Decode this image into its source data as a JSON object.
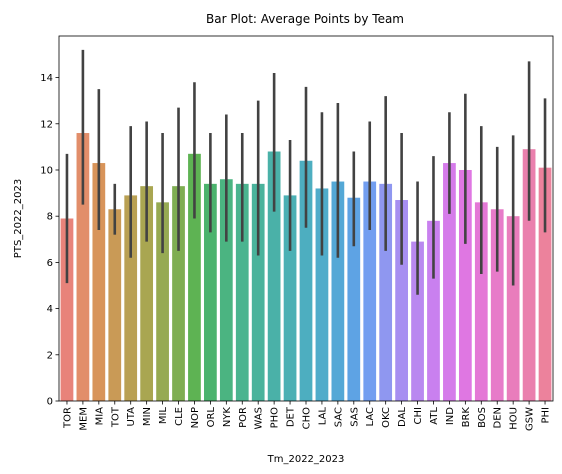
{
  "chart_data": {
    "type": "bar",
    "title": "Bar Plot: Average Points by Team",
    "xlabel": "Tm_2022_2023",
    "ylabel": "PTS_2022_2023",
    "ylim": [
      0,
      15.8
    ],
    "yticks": [
      0,
      2,
      4,
      6,
      8,
      10,
      12,
      14
    ],
    "grid": false,
    "error_bars": true,
    "categories": [
      "TOR",
      "MEM",
      "MIA",
      "TOT",
      "UTA",
      "MIN",
      "MIL",
      "CLE",
      "NOP",
      "ORL",
      "NYK",
      "POR",
      "WAS",
      "PHO",
      "DET",
      "CHO",
      "LAL",
      "SAC",
      "SAS",
      "LAC",
      "OKC",
      "DAL",
      "CHI",
      "ATL",
      "IND",
      "BRK",
      "BOS",
      "DEN",
      "HOU",
      "GSW",
      "PHI"
    ],
    "values": [
      7.9,
      11.6,
      10.3,
      8.3,
      8.9,
      9.3,
      8.6,
      9.3,
      10.7,
      9.4,
      9.6,
      9.4,
      9.4,
      10.8,
      8.9,
      10.4,
      9.2,
      9.5,
      8.8,
      9.5,
      9.4,
      8.7,
      6.9,
      7.8,
      10.3,
      10.0,
      8.6,
      8.3,
      8.0,
      10.9,
      10.1
    ],
    "ci_low": [
      5.1,
      8.5,
      7.4,
      7.2,
      6.2,
      6.9,
      6.4,
      6.5,
      7.9,
      7.3,
      6.9,
      6.9,
      6.3,
      8.2,
      6.5,
      7.5,
      6.3,
      6.2,
      6.7,
      7.4,
      6.5,
      5.9,
      4.6,
      5.3,
      8.1,
      6.8,
      5.5,
      5.6,
      5.0,
      7.8,
      7.3
    ],
    "ci_high": [
      10.7,
      15.2,
      13.5,
      9.4,
      11.9,
      12.1,
      11.6,
      12.7,
      13.8,
      11.6,
      12.4,
      11.6,
      13.0,
      14.2,
      11.3,
      13.6,
      12.5,
      12.9,
      10.8,
      12.1,
      13.2,
      11.6,
      9.5,
      10.6,
      12.5,
      13.3,
      11.9,
      11.0,
      11.5,
      14.7,
      13.1
    ],
    "colors": [
      "#e8837a",
      "#e28e6a",
      "#d8945a",
      "#c99a56",
      "#b9a053",
      "#a9a651",
      "#96aa52",
      "#7fae52",
      "#5eb353",
      "#4bb36d",
      "#4bb481",
      "#4bb48f",
      "#4ab39c",
      "#4ab1a8",
      "#4bb0b4",
      "#4daec0",
      "#50acca",
      "#54a8d6",
      "#5ea3e4",
      "#729ef0",
      "#8f97f0",
      "#a78ff1",
      "#b988f0",
      "#c980ef",
      "#d57bea",
      "#df77e2",
      "#e478d6",
      "#e77bc9",
      "#e97dbc",
      "#ea80ad",
      "#ec829c"
    ]
  }
}
